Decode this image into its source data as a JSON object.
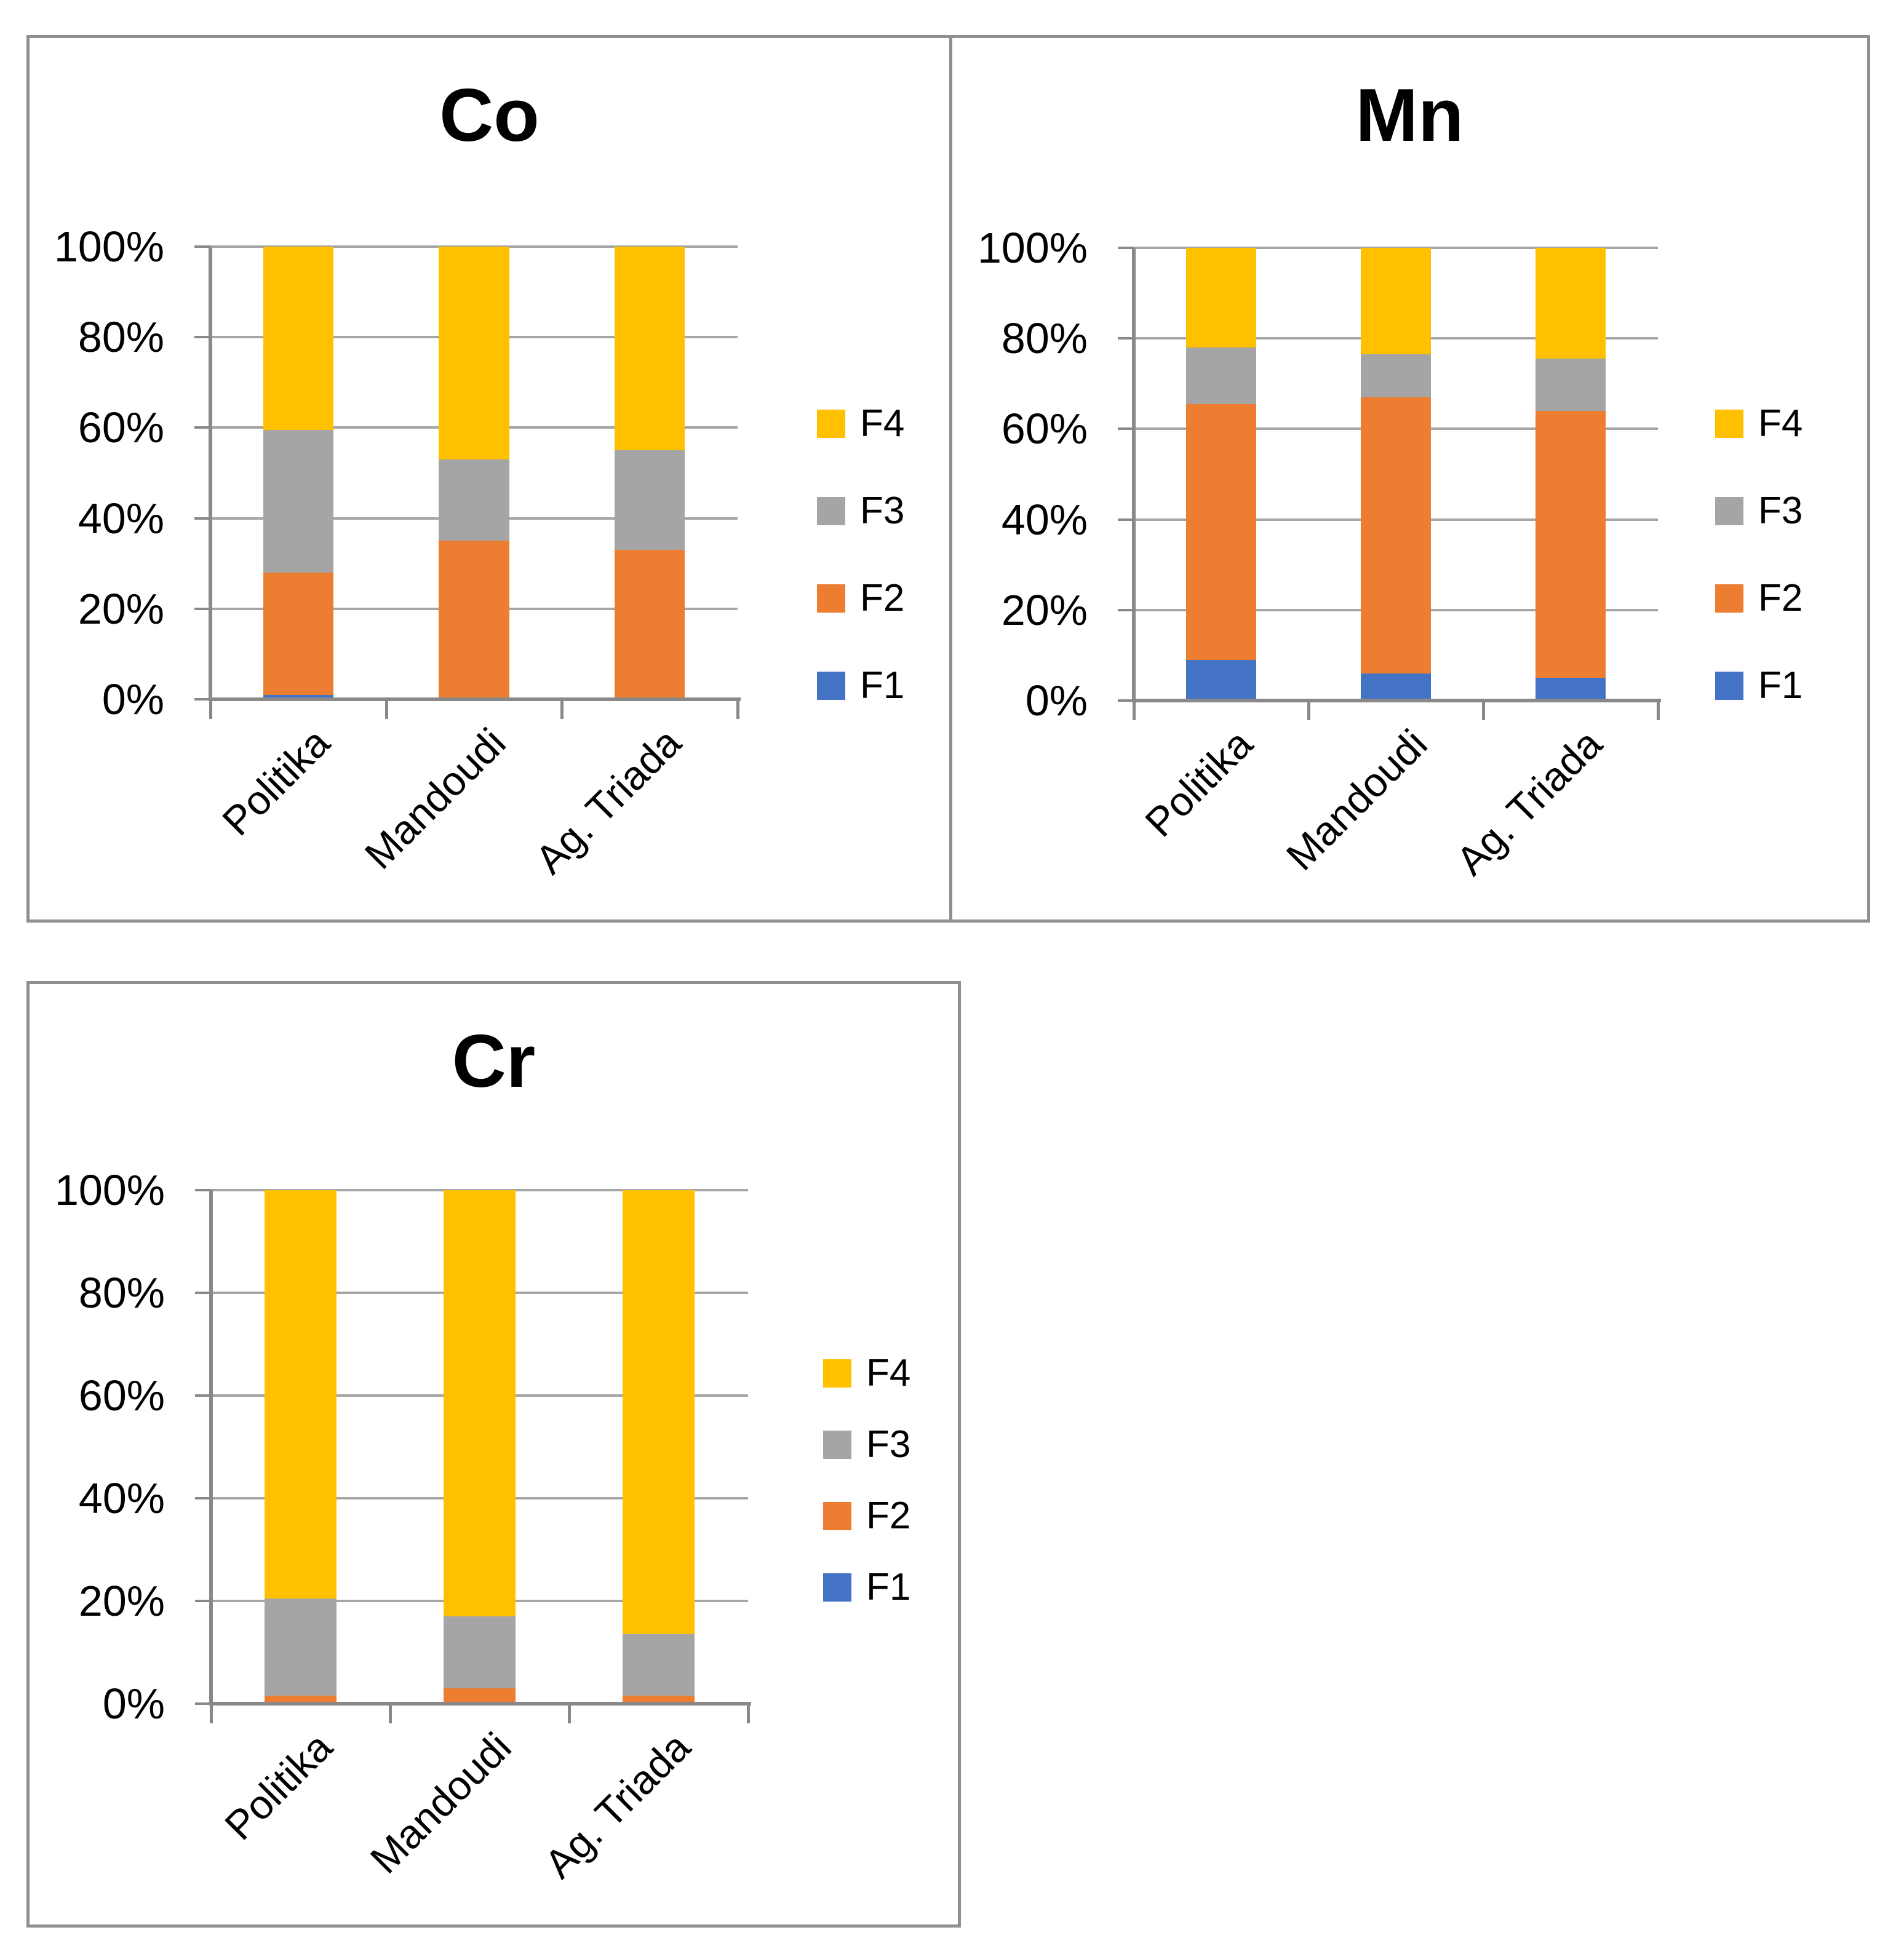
{
  "page": {
    "background": "#ffffff"
  },
  "chart_data": [
    {
      "id": "co",
      "type": "bar",
      "stacked": true,
      "percent_stacked": true,
      "title": "Co",
      "categories": [
        "Politika",
        "Mandoudi",
        "Ag. Triada"
      ],
      "series": [
        {
          "name": "F1",
          "color": "#4472C4",
          "values": [
            1,
            0,
            0
          ]
        },
        {
          "name": "F2",
          "color": "#ED7D31",
          "values": [
            27,
            35,
            33
          ]
        },
        {
          "name": "F3",
          "color": "#A5A5A5",
          "values": [
            31.5,
            18,
            22
          ]
        },
        {
          "name": "F4",
          "color": "#FFC000",
          "values": [
            40.5,
            47,
            45
          ]
        }
      ],
      "ylim": [
        0,
        100
      ],
      "y_tick_labels": [
        "0%",
        "20%",
        "40%",
        "60%",
        "80%",
        "100%"
      ],
      "grid": true,
      "legend": {
        "position": "right",
        "order": [
          "F4",
          "F3",
          "F2",
          "F1"
        ]
      }
    },
    {
      "id": "mn",
      "type": "bar",
      "stacked": true,
      "percent_stacked": true,
      "title": "Mn",
      "categories": [
        "Politika",
        "Mandoudi",
        "Ag. Triada"
      ],
      "series": [
        {
          "name": "F1",
          "color": "#4472C4",
          "values": [
            9,
            6,
            5
          ]
        },
        {
          "name": "F2",
          "color": "#ED7D31",
          "values": [
            56.5,
            61,
            59
          ]
        },
        {
          "name": "F3",
          "color": "#A5A5A5",
          "values": [
            12.5,
            9.5,
            11.5
          ]
        },
        {
          "name": "F4",
          "color": "#FFC000",
          "values": [
            22,
            23.5,
            24.5
          ]
        }
      ],
      "ylim": [
        0,
        100
      ],
      "y_tick_labels": [
        "0%",
        "20%",
        "40%",
        "60%",
        "80%",
        "100%"
      ],
      "grid": true,
      "legend": {
        "position": "right",
        "order": [
          "F4",
          "F3",
          "F2",
          "F1"
        ]
      }
    },
    {
      "id": "cr",
      "type": "bar",
      "stacked": true,
      "percent_stacked": true,
      "title": "Cr",
      "categories": [
        "Politika",
        "Mandoudi",
        "Ag. Triada"
      ],
      "series": [
        {
          "name": "F1",
          "color": "#4472C4",
          "values": [
            0,
            0,
            0
          ]
        },
        {
          "name": "F2",
          "color": "#ED7D31",
          "values": [
            1.5,
            3,
            1.5
          ]
        },
        {
          "name": "F3",
          "color": "#A5A5A5",
          "values": [
            19,
            14,
            12
          ]
        },
        {
          "name": "F4",
          "color": "#FFC000",
          "values": [
            79.5,
            83,
            86.5
          ]
        }
      ],
      "ylim": [
        0,
        100
      ],
      "y_tick_labels": [
        "0%",
        "20%",
        "40%",
        "60%",
        "80%",
        "100%"
      ],
      "grid": true,
      "legend": {
        "position": "right",
        "order": [
          "F4",
          "F3",
          "F2",
          "F1"
        ]
      }
    }
  ]
}
